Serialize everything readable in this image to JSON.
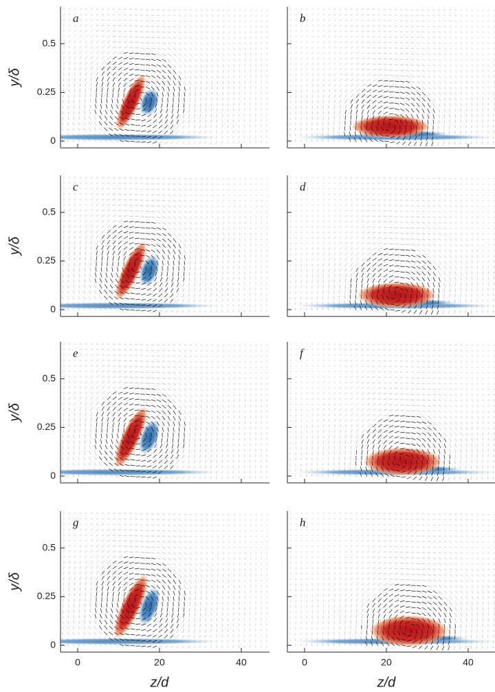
{
  "figure": {
    "panels": [
      {
        "label": "a"
      },
      {
        "label": "b"
      },
      {
        "label": "c"
      },
      {
        "label": "d"
      },
      {
        "label": "e"
      },
      {
        "label": "f"
      },
      {
        "label": "g"
      },
      {
        "label": "h"
      }
    ],
    "xlabel": "z/d",
    "ylabel": "y/δ",
    "xlim": [
      -4.2,
      46.9
    ],
    "ylim": [
      -0.035,
      0.69
    ],
    "xticks": [
      0,
      20,
      40
    ],
    "yticks": [
      0,
      0.25,
      0.5
    ]
  }
}
